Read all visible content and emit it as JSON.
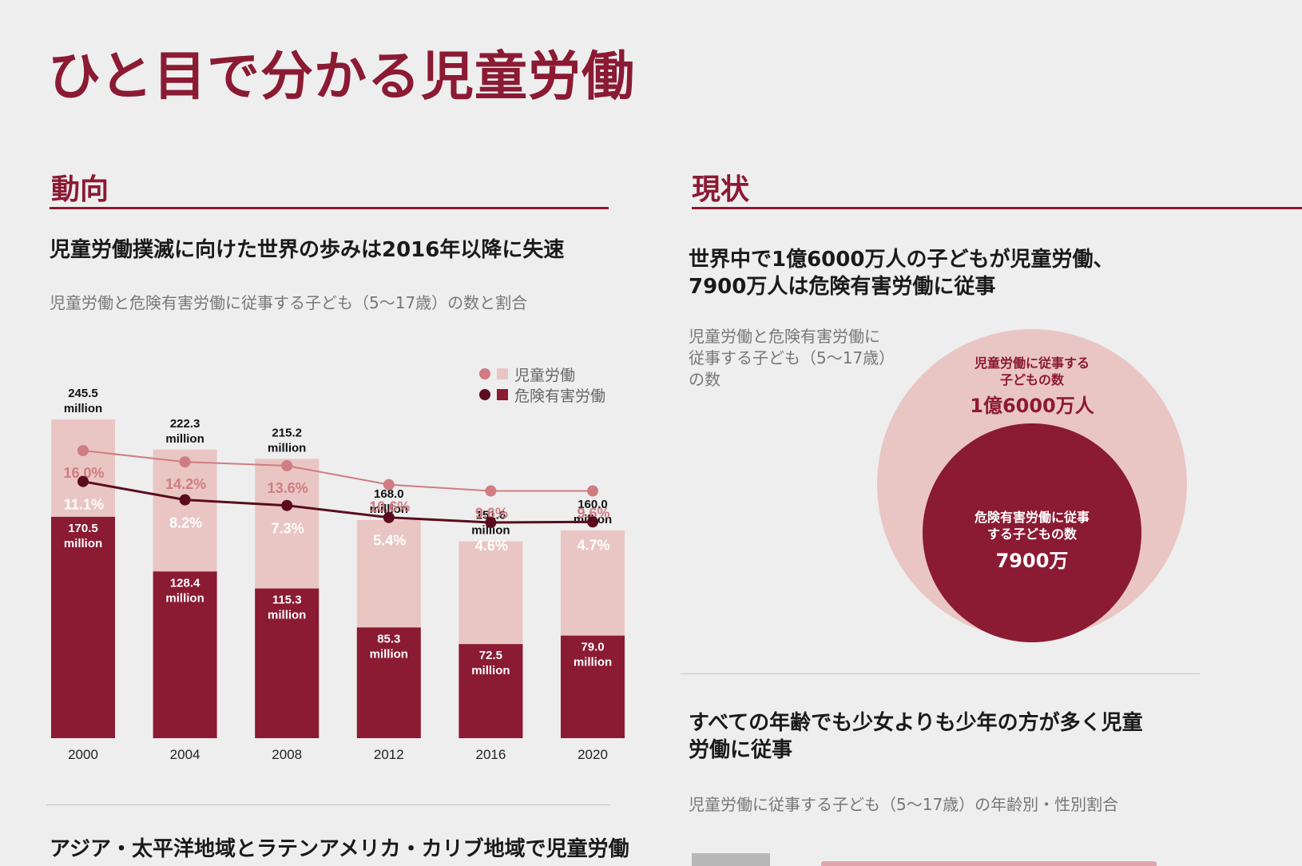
{
  "page": {
    "title": "ひと目で分かる児童労働"
  },
  "left": {
    "section_heading": "動向",
    "headline": "児童労働撲滅に向けた世界の歩みは2016年以降に失速",
    "caption": "児童労働と危険有害労働に従事する子ども（5〜17歳）の数と割合",
    "next_headline": "アジア・太平洋地域とラテンアメリカ・カリブ地域で児童労働"
  },
  "right": {
    "section_heading": "現状",
    "headline_line1": "世界中で1億6000万人の子どもが児童労働、",
    "headline_line2": "7900万人は危険有害労働に従事",
    "caption_line1": "児童労働と危険有害労働に",
    "caption_line2": "従事する子ども（5〜17歳）",
    "caption_line3": "の数",
    "outer_label_line1": "児童労働に従事する",
    "outer_label_line2": "子どもの数",
    "outer_value": "1億6000万人",
    "inner_label_line1": "危険有害労働に従事",
    "inner_label_line2": "する子どもの数",
    "inner_value": "7900万",
    "headline2_line1": "すべての年齢でも少女よりも少年の方が多く児童",
    "headline2_line2": "労働に従事",
    "caption2": "児童労働に従事する子ども（5〜17歳）の年齢別・性別割合"
  },
  "colors": {
    "accent": "#8b1a33",
    "light": "#e9c6c3",
    "light_line": "#cf7c82",
    "dark_line": "#5a0c1e"
  },
  "chart_data": {
    "type": "bar",
    "stacked": true,
    "categories": [
      "2000",
      "2004",
      "2008",
      "2012",
      "2016",
      "2020"
    ],
    "series": [
      {
        "name": "児童労働",
        "values": [
          245.5,
          222.3,
          215.2,
          168.0,
          151.6,
          160.0
        ],
        "value_labels": [
          "245.5 million",
          "222.3 million",
          "215.2 million",
          "168.0 million",
          "151.6 million",
          "160.0 million"
        ],
        "percent": [
          16.0,
          14.2,
          13.6,
          10.6,
          9.6,
          9.6
        ],
        "percent_labels": [
          "16.0%",
          "14.2%",
          "13.6%",
          "10.6%",
          "9.6%",
          "9.6%"
        ]
      },
      {
        "name": "危険有害労働",
        "values": [
          170.5,
          128.4,
          115.3,
          85.3,
          72.5,
          79.0
        ],
        "value_labels": [
          "170.5 million",
          "128.4 million",
          "115.3 million",
          "85.3 million",
          "72.5 million",
          "79.0 million"
        ],
        "percent": [
          11.1,
          8.2,
          7.3,
          5.4,
          4.6,
          4.7
        ],
        "percent_labels": [
          "11.1%",
          "8.2%",
          "7.3%",
          "5.4%",
          "4.6%",
          "4.7%"
        ]
      }
    ],
    "legend_position": "top-right",
    "grid": false
  }
}
